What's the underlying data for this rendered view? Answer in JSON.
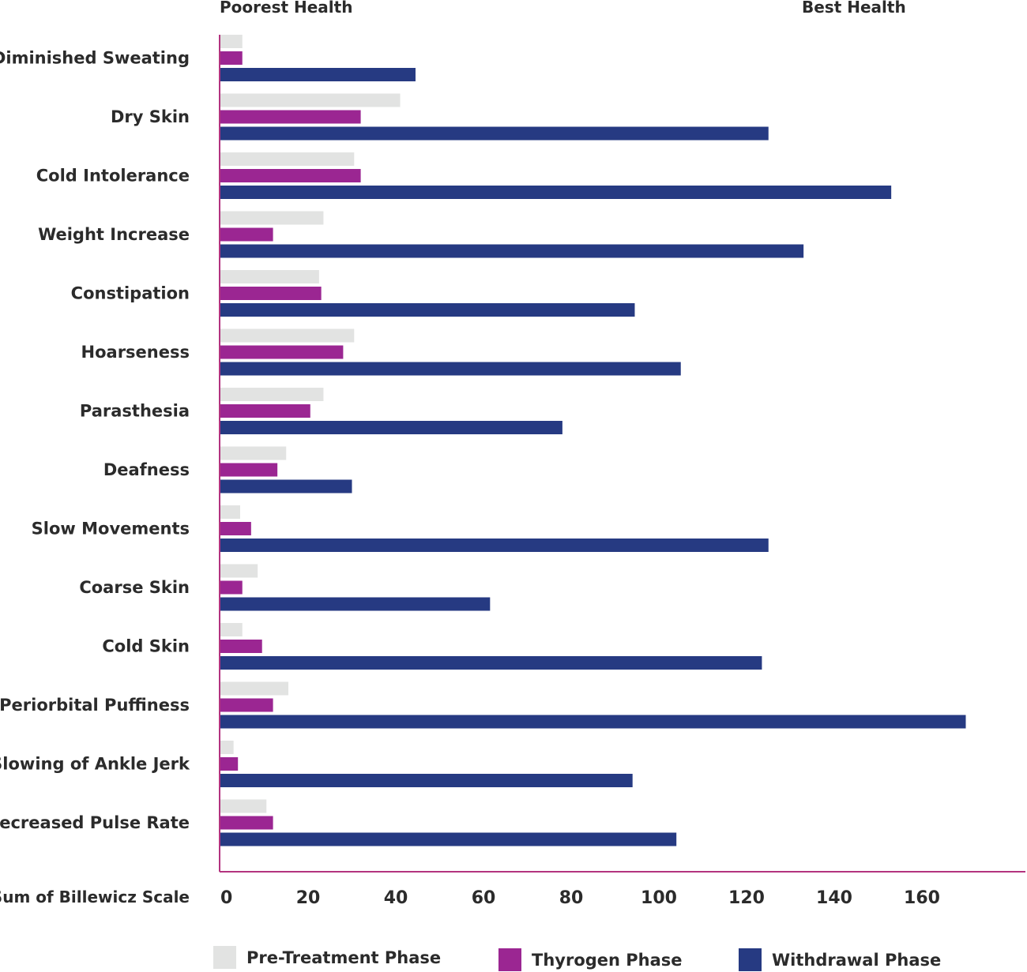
{
  "chart_data": {
    "type": "bar",
    "orientation": "horizontal",
    "annotations": {
      "left": "Poorest Health",
      "right": "Best Health"
    },
    "xlabel": "Sum of Billewicz Scale",
    "xlim": [
      0,
      185
    ],
    "xticks": [
      0,
      20,
      40,
      60,
      80,
      100,
      120,
      140,
      160
    ],
    "categories": [
      "Diminished Sweating",
      "Dry Skin",
      "Cold Intolerance",
      "Weight Increase",
      "Constipation",
      "Hoarseness",
      "Parasthesia",
      "Deafness",
      "Slow Movements",
      "Coarse Skin",
      "Cold Skin",
      "Periorbital Puffiness",
      "Slowing of Ankle Jerk",
      "Decreased Pulse Rate"
    ],
    "series": [
      {
        "name": "Pre-Treatment Phase",
        "color": "#e2e3e2",
        "values": [
          5,
          41,
          30.5,
          23.5,
          22.5,
          30.5,
          23.5,
          15,
          4.5,
          8.5,
          5,
          15.5,
          3,
          10.5
        ]
      },
      {
        "name": "Thyrogen Phase",
        "color": "#9b2692",
        "values": [
          5,
          32,
          32,
          12,
          23,
          28,
          20.5,
          13,
          7,
          5,
          9.5,
          12,
          4,
          12
        ]
      },
      {
        "name": "Withdrawal Phase",
        "color": "#263a82",
        "values": [
          44.5,
          125,
          153,
          133,
          94.5,
          105,
          78,
          30,
          125,
          61.5,
          123.5,
          170,
          94,
          104
        ]
      }
    ],
    "legend_position": "bottom",
    "grid": false
  }
}
